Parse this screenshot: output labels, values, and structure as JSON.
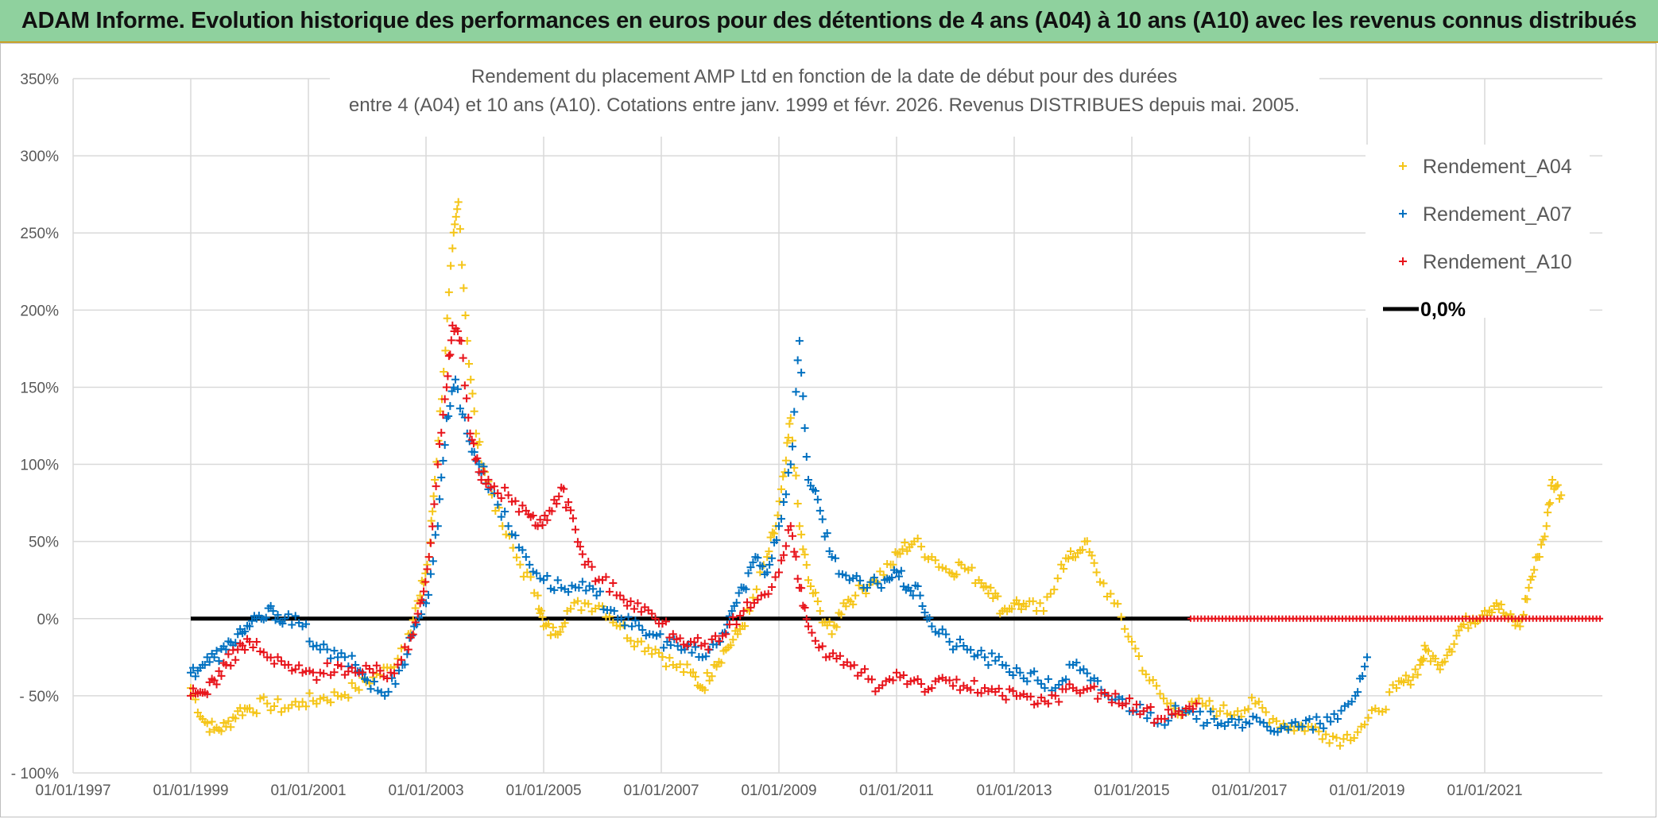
{
  "banner": {
    "title": "ADAM Informe. Evolution historique des performances en euros pour des détentions de 4 ans (A04) à 10 ans (A10) avec les revenus connus distribués"
  },
  "chart_data": {
    "type": "scatter",
    "title_line1": "Rendement du placement AMP Ltd en fonction de la date de début pour des durées",
    "title_line2": "entre 4 (A04) et 10 ans (A10). Cotations entre janv. 1999 et févr. 2026. Revenus DISTRIBUES depuis mai. 2005.",
    "xlabel": "",
    "ylabel": "",
    "xlim": [
      1997.0,
      2023.0
    ],
    "ylim": [
      -100,
      350
    ],
    "grid": true,
    "legend_position": "top-right",
    "x_ticks": [
      {
        "value": 1997,
        "label": "01/01/1997"
      },
      {
        "value": 1999,
        "label": "01/01/1999"
      },
      {
        "value": 2001,
        "label": "01/01/2001"
      },
      {
        "value": 2003,
        "label": "01/01/2003"
      },
      {
        "value": 2005,
        "label": "01/01/2005"
      },
      {
        "value": 2007,
        "label": "01/01/2007"
      },
      {
        "value": 2009,
        "label": "01/01/2009"
      },
      {
        "value": 2011,
        "label": "01/01/2011"
      },
      {
        "value": 2013,
        "label": "01/01/2013"
      },
      {
        "value": 2015,
        "label": "01/01/2015"
      },
      {
        "value": 2017,
        "label": "01/01/2017"
      },
      {
        "value": 2019,
        "label": "01/01/2019"
      },
      {
        "value": 2021,
        "label": "01/01/2021"
      }
    ],
    "y_ticks": [
      {
        "value": -100,
        "label": "- 100%"
      },
      {
        "value": -50,
        "label": "- 50%"
      },
      {
        "value": 0,
        "label": "0%"
      },
      {
        "value": 50,
        "label": "50%"
      },
      {
        "value": 100,
        "label": "100%"
      },
      {
        "value": 150,
        "label": "150%"
      },
      {
        "value": 200,
        "label": "200%"
      },
      {
        "value": 250,
        "label": "250%"
      },
      {
        "value": 300,
        "label": "300%"
      },
      {
        "value": 350,
        "label": "350%"
      }
    ],
    "series": [
      {
        "name": "Rendement_A04",
        "color": "#f5c518",
        "marker": "plus",
        "x": [
          1999.0,
          1999.2,
          1999.4,
          1999.6,
          1999.8,
          2000.0,
          2000.3,
          2000.6,
          2000.9,
          2001.2,
          2001.5,
          2001.8,
          2002.1,
          2002.4,
          2002.7,
          2002.9,
          2003.05,
          2003.15,
          2003.3,
          2003.45,
          2003.55,
          2003.7,
          2003.85,
          2004.0,
          2004.3,
          2004.6,
          2004.9,
          2005.0,
          2005.2,
          2005.4,
          2005.7,
          2006.0,
          2006.3,
          2006.6,
          2006.9,
          2007.2,
          2007.5,
          2007.7,
          2007.9,
          2008.1,
          2008.3,
          2008.5,
          2008.8,
          2008.95,
          2009.1,
          2009.2,
          2009.35,
          2009.5,
          2009.7,
          2009.9,
          2010.1,
          2010.3,
          2010.6,
          2010.9,
          2011.1,
          2011.3,
          2011.6,
          2011.9,
          2012.1,
          2012.4,
          2012.6,
          2012.8,
          2013.0,
          2013.2,
          2013.5,
          2013.8,
          2014.0,
          2014.2,
          2014.4,
          2014.7,
          2015.0,
          2015.3,
          2015.6,
          2015.9,
          2016.2,
          2016.5,
          2016.8,
          2017.1,
          2017.4,
          2017.7,
          2018.0,
          2018.3,
          2018.6,
          2018.9,
          2019.2,
          2019.5,
          2019.7,
          2019.9,
          2020.0,
          2020.2,
          2020.4,
          2020.6,
          2020.8,
          2021.0,
          2021.2,
          2021.4,
          2021.6,
          2021.75,
          2021.9,
          2022.05,
          2022.15,
          2022.3
        ],
        "y": [
          -45,
          -65,
          -72,
          -70,
          -60,
          -58,
          -55,
          -58,
          -54,
          -52,
          -50,
          -45,
          -38,
          -32,
          -10,
          15,
          40,
          90,
          160,
          240,
          270,
          180,
          120,
          95,
          60,
          35,
          15,
          -5,
          -10,
          5,
          10,
          8,
          -5,
          -15,
          -20,
          -30,
          -35,
          -45,
          -30,
          -20,
          -10,
          5,
          40,
          60,
          95,
          130,
          60,
          25,
          5,
          -10,
          10,
          15,
          25,
          35,
          45,
          50,
          40,
          30,
          35,
          25,
          20,
          5,
          10,
          8,
          5,
          35,
          40,
          50,
          30,
          10,
          -15,
          -40,
          -55,
          -60,
          -55,
          -60,
          -60,
          -55,
          -65,
          -70,
          -70,
          -75,
          -78,
          -70,
          -60,
          -45,
          -40,
          -30,
          -20,
          -30,
          -20,
          -5,
          0,
          5,
          10,
          0,
          -5,
          20,
          40,
          60,
          90,
          80
        ]
      },
      {
        "name": "Rendement_A07",
        "color": "#0070c0",
        "marker": "plus",
        "x": [
          1999.0,
          1999.2,
          1999.4,
          1999.6,
          1999.8,
          2000.0,
          2000.2,
          2000.4,
          2000.6,
          2000.9,
          2001.2,
          2001.5,
          2001.8,
          2002.0,
          2002.3,
          2002.6,
          2002.8,
          2003.0,
          2003.2,
          2003.35,
          2003.5,
          2003.7,
          2003.9,
          2004.1,
          2004.4,
          2004.7,
          2005.0,
          2005.3,
          2005.6,
          2005.9,
          2006.2,
          2006.5,
          2006.8,
          2007.1,
          2007.4,
          2007.7,
          2008.0,
          2008.2,
          2008.4,
          2008.6,
          2008.8,
          2009.0,
          2009.2,
          2009.35,
          2009.5,
          2009.7,
          2009.9,
          2010.2,
          2010.5,
          2010.8,
          2011.0,
          2011.2,
          2011.4,
          2011.6,
          2011.9,
          2012.2,
          2012.5,
          2012.8,
          2013.1,
          2013.4,
          2013.7,
          2014.0,
          2014.3,
          2014.6,
          2014.9,
          2015.2,
          2015.5,
          2015.8,
          2016.1,
          2016.4,
          2016.7,
          2017.0,
          2017.3,
          2017.6,
          2017.9,
          2018.2,
          2018.5,
          2018.8,
          2019.0
        ],
        "y": [
          -35,
          -30,
          -25,
          -20,
          -10,
          -5,
          0,
          5,
          0,
          -5,
          -20,
          -25,
          -30,
          -40,
          -50,
          -30,
          -5,
          10,
          60,
          130,
          155,
          120,
          100,
          85,
          60,
          40,
          25,
          20,
          20,
          15,
          5,
          -5,
          -10,
          -15,
          -20,
          -25,
          -15,
          5,
          20,
          40,
          30,
          60,
          100,
          180,
          90,
          70,
          40,
          25,
          20,
          25,
          30,
          20,
          15,
          -5,
          -15,
          -20,
          -25,
          -30,
          -35,
          -40,
          -45,
          -30,
          -40,
          -50,
          -55,
          -60,
          -65,
          -60,
          -65,
          -65,
          -65,
          -68,
          -70,
          -70,
          -70,
          -68,
          -65,
          -50,
          -25
        ]
      },
      {
        "name": "Rendement_A10",
        "color": "#e8141b",
        "marker": "plus",
        "x": [
          1999.0,
          1999.2,
          1999.4,
          1999.6,
          1999.8,
          2000.0,
          2000.3,
          2000.6,
          2000.9,
          2001.2,
          2001.5,
          2001.8,
          2002.1,
          2002.4,
          2002.7,
          2002.9,
          2003.05,
          2003.2,
          2003.35,
          2003.45,
          2003.6,
          2003.75,
          2003.9,
          2004.1,
          2004.4,
          2004.7,
          2004.9,
          2005.1,
          2005.3,
          2005.5,
          2005.7,
          2006.0,
          2006.3,
          2006.6,
          2006.9,
          2007.2,
          2007.5,
          2007.8,
          2008.1,
          2008.4,
          2008.7,
          2009.0,
          2009.2,
          2009.35,
          2009.5,
          2009.8,
          2010.1,
          2010.4,
          2010.7,
          2011.0,
          2011.3,
          2011.6,
          2011.9,
          2012.2,
          2012.5,
          2012.8,
          2013.1,
          2013.4,
          2013.7,
          2014.0,
          2014.3,
          2014.6,
          2014.9,
          2015.2,
          2015.5,
          2015.8,
          2016.1
        ],
        "y": [
          -50,
          -48,
          -40,
          -30,
          -20,
          -15,
          -25,
          -30,
          -35,
          -35,
          -30,
          -35,
          -35,
          -35,
          -20,
          10,
          40,
          100,
          150,
          190,
          180,
          120,
          95,
          85,
          80,
          70,
          60,
          70,
          85,
          65,
          35,
          25,
          15,
          10,
          0,
          -10,
          -15,
          -20,
          -10,
          5,
          15,
          30,
          60,
          20,
          -5,
          -25,
          -30,
          -35,
          -45,
          -35,
          -40,
          -45,
          -40,
          -45,
          -45,
          -50,
          -50,
          -55,
          -50,
          -45,
          -45,
          -50,
          -55,
          -60,
          -65,
          -60,
          -55
        ]
      },
      {
        "name": "Rendement_A10_zero_line",
        "legend": false,
        "color": "#e8141b",
        "marker": "plus",
        "x_range": [
          2016.0,
          2023.0
        ],
        "y": 0
      },
      {
        "name": "0,0%",
        "color": "#000000",
        "type": "line",
        "x": [
          1999.0,
          2016.0
        ],
        "y": [
          0,
          0
        ]
      }
    ],
    "legend": [
      {
        "label": "Rendement_A04",
        "color": "#f5c518",
        "marker": "plus"
      },
      {
        "label": "Rendement_A07",
        "color": "#0070c0",
        "marker": "plus"
      },
      {
        "label": "Rendement_A10",
        "color": "#e8141b",
        "marker": "plus"
      },
      {
        "label": "0,0%",
        "color": "#000000",
        "marker": "line"
      }
    ]
  }
}
